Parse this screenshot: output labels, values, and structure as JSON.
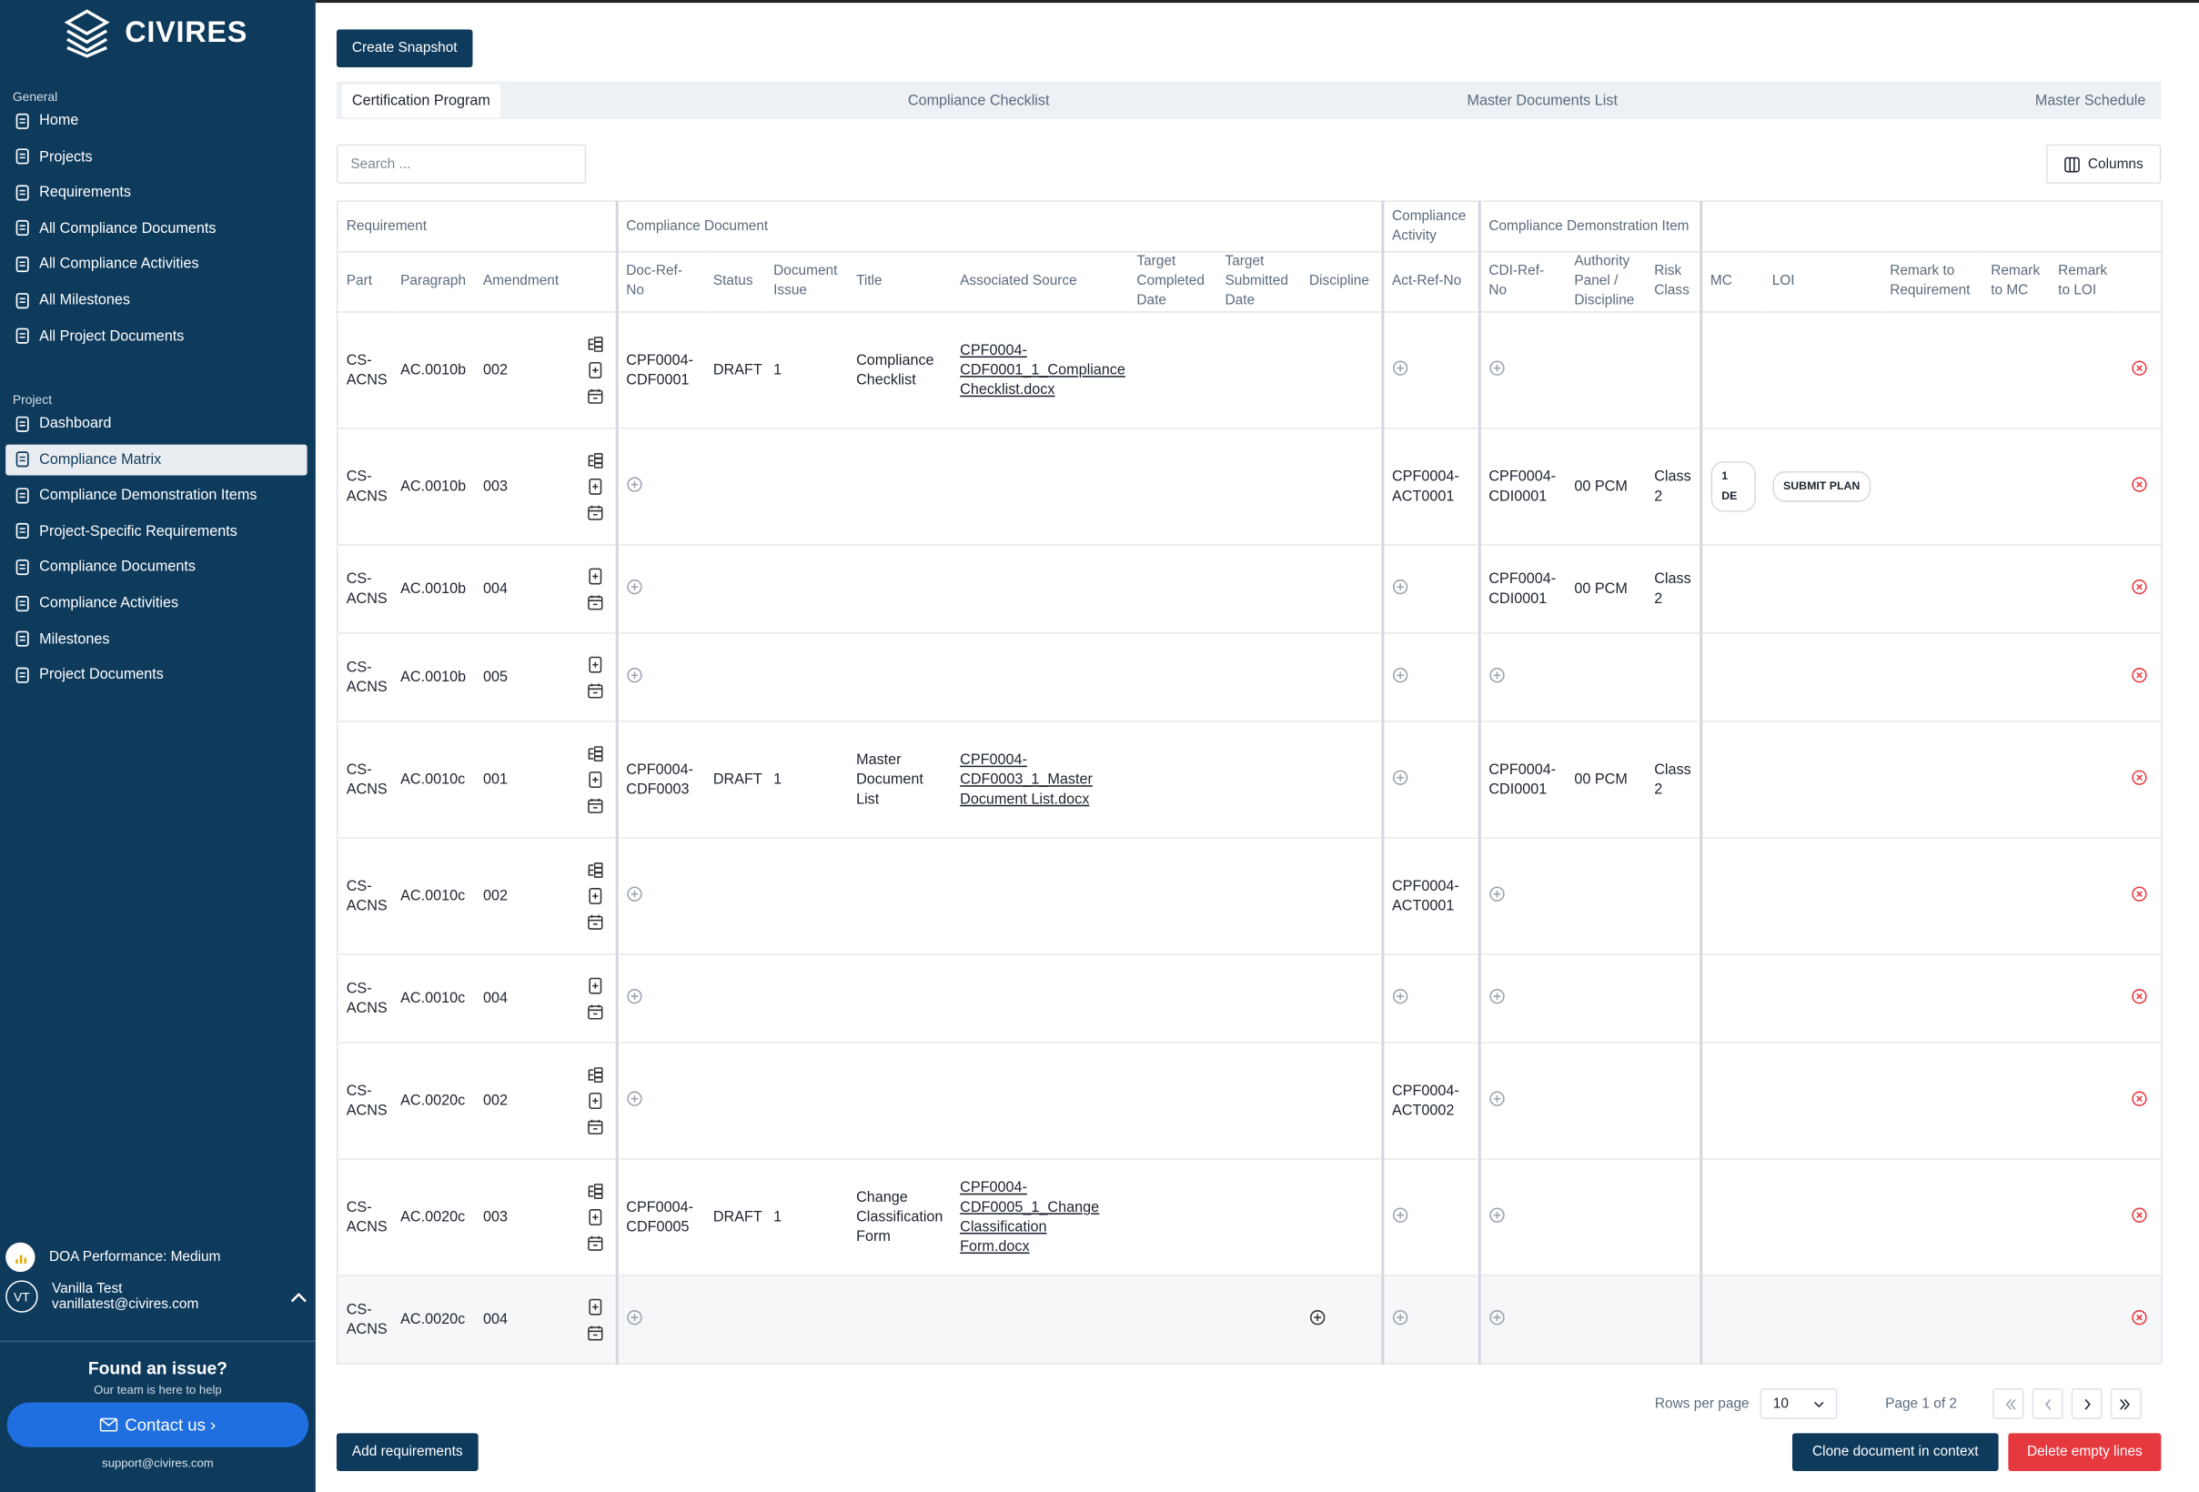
{
  "sidebar": {
    "brand": "CIVIRES",
    "general_label": "General",
    "general_items": [
      "Home",
      "Projects",
      "Requirements",
      "All Compliance Documents",
      "All Compliance Activities",
      "All Milestones",
      "All Project Documents"
    ],
    "project_label": "Project",
    "project_items": [
      "Dashboard",
      "Compliance Matrix",
      "Compliance Demonstration Items",
      "Project-Specific Requirements",
      "Compliance Documents",
      "Compliance Activities",
      "Milestones",
      "Project Documents"
    ],
    "performance": "DOA Performance: Medium",
    "user": {
      "initials": "VT",
      "name": "Vanilla Test",
      "email": "vanillatest@civires.com"
    },
    "help": {
      "title": "Found an issue?",
      "subtitle": "Our team is here to help",
      "button": "Contact us ›",
      "email": "support@civires.com"
    }
  },
  "toolbar": {
    "snapshot": "Create Snapshot",
    "search_placeholder": "Search ...",
    "columns_button": "Columns"
  },
  "tabs": [
    "Certification Program",
    "Compliance Checklist",
    "Master Documents List",
    "Master Schedule"
  ],
  "table": {
    "groups": [
      "Requirement",
      "Compliance Document",
      "Compliance Activity",
      "Compliance Demonstration Item"
    ],
    "columns": {
      "part": "Part",
      "paragraph": "Paragraph",
      "amendment": "Amendment",
      "doc_ref": "Doc-Ref-No",
      "status": "Status",
      "issue": "Document Issue",
      "title": "Title",
      "source": "Associated Source",
      "target_completed": "Target Completed Date",
      "target_submitted": "Target Submitted Date",
      "discipline": "Discipline",
      "act_ref": "Act-Ref-No",
      "cdi_ref": "CDI-Ref-No",
      "authority": "Authority Panel / Discipline",
      "risk": "Risk Class",
      "mc": "MC",
      "loi": "LOI",
      "remark_req": "Remark to Requirement",
      "remark_mc": "Remark to MC",
      "remark_loi": "Remark to LOI"
    },
    "rows": [
      {
        "part": "CS-ACNS",
        "paragraph": "AC.0010b",
        "amendment": "002",
        "doc_ref": "CPF0004-CDF0001",
        "status": "DRAFT",
        "issue": "1",
        "title": "Compliance Checklist",
        "source": "CPF0004-CDF0001_1_Compliance Checklist.docx"
      },
      {
        "part": "CS-ACNS",
        "paragraph": "AC.0010b",
        "amendment": "003",
        "act_ref": "CPF0004-ACT0001",
        "cdi_ref": "CPF0004-CDI0001",
        "authority": "00 PCM",
        "risk": "Class 2",
        "mc": "1 DE",
        "loi": "SUBMIT PLAN"
      },
      {
        "part": "CS-ACNS",
        "paragraph": "AC.0010b",
        "amendment": "004",
        "cdi_ref": "CPF0004-CDI0001",
        "authority": "00 PCM",
        "risk": "Class 2"
      },
      {
        "part": "CS-ACNS",
        "paragraph": "AC.0010b",
        "amendment": "005"
      },
      {
        "part": "CS-ACNS",
        "paragraph": "AC.0010c",
        "amendment": "001",
        "doc_ref": "CPF0004-CDF0003",
        "status": "DRAFT",
        "issue": "1",
        "title": "Master Document List",
        "source": "CPF0004-CDF0003_1_Master Document List.docx",
        "cdi_ref": "CPF0004-CDI0001",
        "authority": "00 PCM",
        "risk": "Class 2"
      },
      {
        "part": "CS-ACNS",
        "paragraph": "AC.0010c",
        "amendment": "002",
        "act_ref": "CPF0004-ACT0001"
      },
      {
        "part": "CS-ACNS",
        "paragraph": "AC.0010c",
        "amendment": "004"
      },
      {
        "part": "CS-ACNS",
        "paragraph": "AC.0020c",
        "amendment": "002",
        "act_ref": "CPF0004-ACT0002"
      },
      {
        "part": "CS-ACNS",
        "paragraph": "AC.0020c",
        "amendment": "003",
        "doc_ref": "CPF0004-CDF0005",
        "status": "DRAFT",
        "issue": "1",
        "title": "Change Classification Form",
        "source": "CPF0004-CDF0005_1_Change Classification Form.docx"
      },
      {
        "part": "CS-ACNS",
        "paragraph": "AC.0020c",
        "amendment": "004"
      }
    ]
  },
  "pagination": {
    "rows_per_page_label": "Rows per page",
    "rows_per_page": "10",
    "page": "Page 1 of 2"
  },
  "footer": {
    "add": "Add requirements",
    "clone": "Clone document in context",
    "delete": "Delete empty lines"
  }
}
